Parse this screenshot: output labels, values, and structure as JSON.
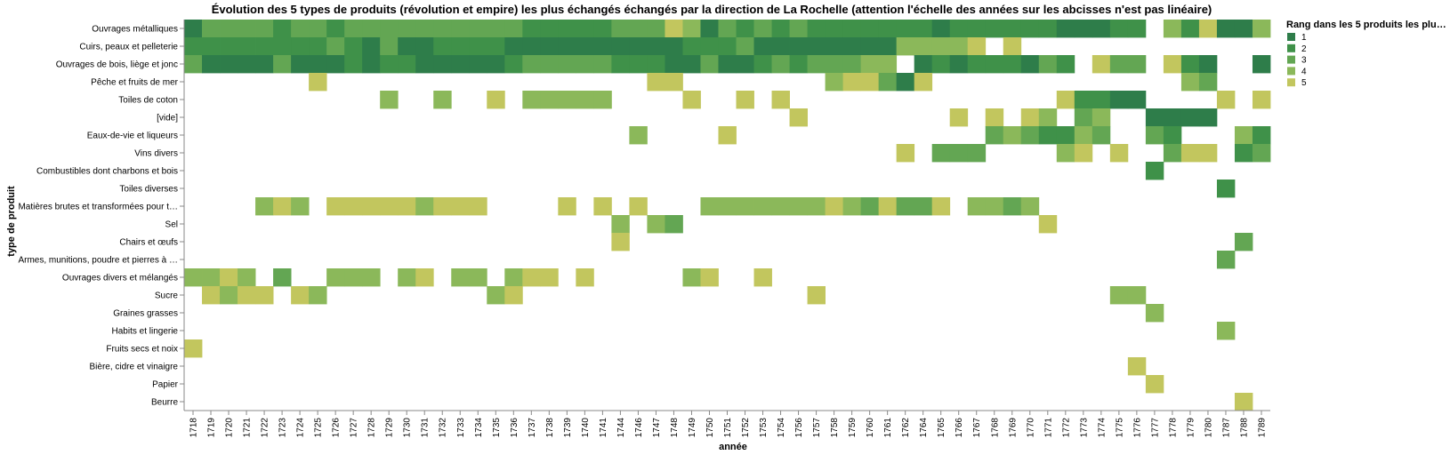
{
  "chart_data": {
    "type": "heatmap",
    "title": "Évolution des 5 types de produits (révolution et empire) les plus échangés échangés par la direction de La Rochelle (attention l'échelle des années sur les abcisses n'est pas linéaire)",
    "xlabel": "année",
    "ylabel": "type de produit",
    "x_categories": [
      "1718",
      "1719",
      "1720",
      "1721",
      "1722",
      "1723",
      "1724",
      "1725",
      "1726",
      "1727",
      "1728",
      "1729",
      "1730",
      "1731",
      "1732",
      "1733",
      "1734",
      "1735",
      "1736",
      "1737",
      "1738",
      "1739",
      "1740",
      "1741",
      "1744",
      "1746",
      "1747",
      "1748",
      "1749",
      "1750",
      "1751",
      "1752",
      "1753",
      "1754",
      "1756",
      "1757",
      "1758",
      "1759",
      "1760",
      "1761",
      "1762",
      "1764",
      "1765",
      "1766",
      "1767",
      "1768",
      "1769",
      "1770",
      "1771",
      "1772",
      "1773",
      "1774",
      "1775",
      "1776",
      "1777",
      "1778",
      "1779",
      "1780",
      "1787",
      "1788",
      "1789"
    ],
    "y_categories": [
      "Ouvrages métalliques",
      "Cuirs, peaux et pelleterie",
      "Ouvrages de bois, liège et jonc",
      "Pêche et fruits de mer",
      "Toiles de coton",
      "[vide]",
      "Eaux-de-vie et liqueurs",
      "Vins divers",
      "Combustibles dont charbons et bois",
      "Toiles diverses",
      "Matières brutes et transformées pour t…",
      "Sel",
      "Chairs et œufs",
      "Armes, munitions, poudre et pierres à …",
      "Ouvrages divers et mélangés",
      "Sucre",
      "Graines grasses",
      "Habits et lingerie",
      "Fruits secs et noix",
      "Bière, cidre et vinaigre",
      "Papier",
      "Beurre"
    ],
    "legend": {
      "title": "Rang dans les 5 produits les plu…",
      "placement": "top-right",
      "entries": [
        {
          "label": "1",
          "color": "#2e7d4a"
        },
        {
          "label": "2",
          "color": "#3f9149"
        },
        {
          "label": "3",
          "color": "#63a653"
        },
        {
          "label": "4",
          "color": "#8bb85a"
        },
        {
          "label": "5",
          "color": "#c2c65e"
        }
      ]
    },
    "grid": false,
    "cells": {
      "Ouvrages métalliques": [
        1,
        3,
        3,
        3,
        3,
        2,
        3,
        3,
        2,
        3,
        3,
        3,
        3,
        3,
        3,
        3,
        3,
        3,
        3,
        2,
        2,
        2,
        2,
        2,
        3,
        3,
        3,
        5,
        4,
        1,
        3,
        2,
        3,
        2,
        3,
        2,
        2,
        2,
        2,
        2,
        2,
        2,
        1,
        2,
        2,
        2,
        2,
        2,
        2,
        1,
        1,
        1,
        2,
        2,
        0,
        4,
        2,
        5,
        1,
        1,
        4
      ],
      "Cuirs, peaux et pelleterie": [
        2,
        2,
        2,
        2,
        2,
        2,
        2,
        2,
        3,
        2,
        1,
        3,
        1,
        1,
        2,
        2,
        2,
        2,
        1,
        1,
        1,
        1,
        1,
        1,
        1,
        1,
        1,
        1,
        2,
        2,
        2,
        3,
        1,
        1,
        1,
        1,
        1,
        1,
        1,
        1,
        4,
        4,
        4,
        4,
        5,
        0,
        5,
        0,
        0,
        0,
        0,
        0,
        0,
        0,
        0,
        0,
        0,
        0,
        0,
        0,
        0
      ],
      "Ouvrages de bois, liège et jonc": [
        3,
        1,
        1,
        1,
        1,
        3,
        1,
        1,
        1,
        2,
        1,
        2,
        2,
        1,
        1,
        1,
        1,
        1,
        2,
        3,
        3,
        3,
        3,
        3,
        2,
        2,
        2,
        1,
        1,
        3,
        1,
        1,
        2,
        3,
        2,
        3,
        3,
        3,
        4,
        4,
        0,
        1,
        2,
        1,
        2,
        2,
        2,
        1,
        3,
        2,
        0,
        5,
        3,
        3,
        0,
        5,
        2,
        1,
        0,
        0,
        1
      ],
      "Pêche et fruits de mer": [
        0,
        0,
        0,
        0,
        0,
        0,
        0,
        5,
        0,
        0,
        0,
        0,
        0,
        0,
        0,
        0,
        0,
        0,
        0,
        0,
        0,
        0,
        0,
        0,
        0,
        0,
        5,
        5,
        0,
        0,
        0,
        0,
        0,
        0,
        0,
        0,
        4,
        5,
        5,
        3,
        1,
        5,
        0,
        0,
        0,
        0,
        0,
        0,
        0,
        0,
        0,
        0,
        0,
        0,
        0,
        0,
        4,
        3,
        0,
        0,
        0
      ],
      "Toiles de coton": [
        0,
        0,
        0,
        0,
        0,
        0,
        0,
        0,
        0,
        0,
        0,
        4,
        0,
        0,
        4,
        0,
        0,
        5,
        0,
        4,
        4,
        4,
        4,
        4,
        0,
        0,
        0,
        0,
        5,
        0,
        0,
        5,
        0,
        5,
        0,
        0,
        0,
        0,
        0,
        0,
        0,
        0,
        0,
        0,
        0,
        0,
        0,
        0,
        0,
        5,
        2,
        2,
        1,
        1,
        0,
        0,
        0,
        0,
        5,
        0,
        5
      ],
      "[vide]": [
        0,
        0,
        0,
        0,
        0,
        0,
        0,
        0,
        0,
        0,
        0,
        0,
        0,
        0,
        0,
        0,
        0,
        0,
        0,
        0,
        0,
        0,
        0,
        0,
        0,
        0,
        0,
        0,
        0,
        0,
        0,
        0,
        0,
        0,
        5,
        0,
        0,
        0,
        0,
        0,
        0,
        0,
        0,
        5,
        0,
        5,
        0,
        5,
        4,
        0,
        3,
        4,
        0,
        0,
        1,
        1,
        1,
        1,
        0,
        0,
        0
      ],
      "Eaux-de-vie et liqueurs": [
        0,
        0,
        0,
        0,
        0,
        0,
        0,
        0,
        0,
        0,
        0,
        0,
        0,
        0,
        0,
        0,
        0,
        0,
        0,
        0,
        0,
        0,
        0,
        0,
        0,
        4,
        0,
        0,
        0,
        0,
        5,
        0,
        0,
        0,
        0,
        0,
        0,
        0,
        0,
        0,
        0,
        0,
        0,
        0,
        0,
        3,
        4,
        3,
        2,
        2,
        4,
        3,
        0,
        0,
        3,
        2,
        0,
        0,
        0,
        4,
        2
      ],
      "Vins divers": [
        0,
        0,
        0,
        0,
        0,
        0,
        0,
        0,
        0,
        0,
        0,
        0,
        0,
        0,
        0,
        0,
        0,
        0,
        0,
        0,
        0,
        0,
        0,
        0,
        0,
        0,
        0,
        0,
        0,
        0,
        0,
        0,
        0,
        0,
        0,
        0,
        0,
        0,
        0,
        0,
        5,
        0,
        3,
        3,
        3,
        0,
        0,
        0,
        0,
        4,
        5,
        0,
        5,
        0,
        0,
        3,
        5,
        5,
        0,
        2,
        3
      ],
      "Combustibles dont charbons et bois": [
        0,
        0,
        0,
        0,
        0,
        0,
        0,
        0,
        0,
        0,
        0,
        0,
        0,
        0,
        0,
        0,
        0,
        0,
        0,
        0,
        0,
        0,
        0,
        0,
        0,
        0,
        0,
        0,
        0,
        0,
        0,
        0,
        0,
        0,
        0,
        0,
        0,
        0,
        0,
        0,
        0,
        0,
        0,
        0,
        0,
        0,
        0,
        0,
        0,
        0,
        0,
        0,
        0,
        0,
        2,
        0,
        0,
        0,
        0,
        0,
        0
      ],
      "Toiles diverses": [
        0,
        0,
        0,
        0,
        0,
        0,
        0,
        0,
        0,
        0,
        0,
        0,
        0,
        0,
        0,
        0,
        0,
        0,
        0,
        0,
        0,
        0,
        0,
        0,
        0,
        0,
        0,
        0,
        0,
        0,
        0,
        0,
        0,
        0,
        0,
        0,
        0,
        0,
        0,
        0,
        0,
        0,
        0,
        0,
        0,
        0,
        0,
        0,
        0,
        0,
        0,
        0,
        0,
        0,
        0,
        0,
        0,
        0,
        2,
        0,
        0
      ],
      "Matières brutes et transformées pour t…": [
        0,
        0,
        0,
        0,
        4,
        5,
        4,
        0,
        5,
        5,
        5,
        5,
        5,
        4,
        5,
        5,
        5,
        0,
        0,
        0,
        0,
        5,
        0,
        5,
        0,
        5,
        0,
        0,
        0,
        4,
        4,
        4,
        4,
        4,
        4,
        4,
        5,
        4,
        3,
        5,
        3,
        3,
        5,
        0,
        4,
        4,
        3,
        4,
        0,
        0,
        0,
        0,
        0,
        0,
        0,
        0,
        0,
        0,
        0,
        0,
        0
      ],
      "Sel": [
        0,
        0,
        0,
        0,
        0,
        0,
        0,
        0,
        0,
        0,
        0,
        0,
        0,
        0,
        0,
        0,
        0,
        0,
        0,
        0,
        0,
        0,
        0,
        0,
        4,
        0,
        4,
        3,
        0,
        0,
        0,
        0,
        0,
        0,
        0,
        0,
        0,
        0,
        0,
        0,
        0,
        0,
        0,
        0,
        0,
        0,
        0,
        0,
        5,
        0,
        0,
        0,
        0,
        0,
        0,
        0,
        0,
        0,
        0,
        0,
        0
      ],
      "Chairs et œufs": [
        0,
        0,
        0,
        0,
        0,
        0,
        0,
        0,
        0,
        0,
        0,
        0,
        0,
        0,
        0,
        0,
        0,
        0,
        0,
        0,
        0,
        0,
        0,
        0,
        5,
        0,
        0,
        0,
        0,
        0,
        0,
        0,
        0,
        0,
        0,
        0,
        0,
        0,
        0,
        0,
        0,
        0,
        0,
        0,
        0,
        0,
        0,
        0,
        0,
        0,
        0,
        0,
        0,
        0,
        0,
        0,
        0,
        0,
        0,
        3,
        0
      ],
      "Armes, munitions, poudre et pierres à …": [
        0,
        0,
        0,
        0,
        0,
        0,
        0,
        0,
        0,
        0,
        0,
        0,
        0,
        0,
        0,
        0,
        0,
        0,
        0,
        0,
        0,
        0,
        0,
        0,
        0,
        0,
        0,
        0,
        0,
        0,
        0,
        0,
        0,
        0,
        0,
        0,
        0,
        0,
        0,
        0,
        0,
        0,
        0,
        0,
        0,
        0,
        0,
        0,
        0,
        0,
        0,
        0,
        0,
        0,
        0,
        0,
        0,
        0,
        3,
        0,
        0
      ],
      "Ouvrages divers et mélangés": [
        4,
        4,
        5,
        4,
        0,
        3,
        0,
        0,
        4,
        4,
        4,
        0,
        4,
        5,
        0,
        4,
        4,
        0,
        4,
        5,
        5,
        0,
        5,
        0,
        0,
        0,
        0,
        0,
        4,
        5,
        0,
        0,
        5,
        0,
        0,
        0,
        0,
        0,
        0,
        0,
        0,
        0,
        0,
        0,
        0,
        0,
        0,
        0,
        0,
        0,
        0,
        0,
        0,
        0,
        0,
        0,
        0,
        0,
        0,
        0,
        0
      ],
      "Sucre": [
        0,
        5,
        4,
        5,
        5,
        0,
        5,
        4,
        0,
        0,
        0,
        0,
        0,
        0,
        0,
        0,
        0,
        4,
        5,
        0,
        0,
        0,
        0,
        0,
        0,
        0,
        0,
        0,
        0,
        0,
        0,
        0,
        0,
        0,
        0,
        5,
        0,
        0,
        0,
        0,
        0,
        0,
        0,
        0,
        0,
        0,
        0,
        0,
        0,
        0,
        0,
        0,
        4,
        4,
        0,
        0,
        0,
        0,
        0,
        0,
        0
      ],
      "Graines grasses": [
        0,
        0,
        0,
        0,
        0,
        0,
        0,
        0,
        0,
        0,
        0,
        0,
        0,
        0,
        0,
        0,
        0,
        0,
        0,
        0,
        0,
        0,
        0,
        0,
        0,
        0,
        0,
        0,
        0,
        0,
        0,
        0,
        0,
        0,
        0,
        0,
        0,
        0,
        0,
        0,
        0,
        0,
        0,
        0,
        0,
        0,
        0,
        0,
        0,
        0,
        0,
        0,
        0,
        0,
        4,
        0,
        0,
        0,
        0,
        0,
        0
      ],
      "Habits et lingerie": [
        0,
        0,
        0,
        0,
        0,
        0,
        0,
        0,
        0,
        0,
        0,
        0,
        0,
        0,
        0,
        0,
        0,
        0,
        0,
        0,
        0,
        0,
        0,
        0,
        0,
        0,
        0,
        0,
        0,
        0,
        0,
        0,
        0,
        0,
        0,
        0,
        0,
        0,
        0,
        0,
        0,
        0,
        0,
        0,
        0,
        0,
        0,
        0,
        0,
        0,
        0,
        0,
        0,
        0,
        0,
        0,
        0,
        0,
        4,
        0,
        0
      ],
      "Fruits secs et noix": [
        5,
        0,
        0,
        0,
        0,
        0,
        0,
        0,
        0,
        0,
        0,
        0,
        0,
        0,
        0,
        0,
        0,
        0,
        0,
        0,
        0,
        0,
        0,
        0,
        0,
        0,
        0,
        0,
        0,
        0,
        0,
        0,
        0,
        0,
        0,
        0,
        0,
        0,
        0,
        0,
        0,
        0,
        0,
        0,
        0,
        0,
        0,
        0,
        0,
        0,
        0,
        0,
        0,
        0,
        0,
        0,
        0,
        0,
        0,
        0,
        0
      ],
      "Bière, cidre et vinaigre": [
        0,
        0,
        0,
        0,
        0,
        0,
        0,
        0,
        0,
        0,
        0,
        0,
        0,
        0,
        0,
        0,
        0,
        0,
        0,
        0,
        0,
        0,
        0,
        0,
        0,
        0,
        0,
        0,
        0,
        0,
        0,
        0,
        0,
        0,
        0,
        0,
        0,
        0,
        0,
        0,
        0,
        0,
        0,
        0,
        0,
        0,
        0,
        0,
        0,
        0,
        0,
        0,
        0,
        5,
        0,
        0,
        0,
        0,
        0,
        0,
        0
      ],
      "Papier": [
        0,
        0,
        0,
        0,
        0,
        0,
        0,
        0,
        0,
        0,
        0,
        0,
        0,
        0,
        0,
        0,
        0,
        0,
        0,
        0,
        0,
        0,
        0,
        0,
        0,
        0,
        0,
        0,
        0,
        0,
        0,
        0,
        0,
        0,
        0,
        0,
        0,
        0,
        0,
        0,
        0,
        0,
        0,
        0,
        0,
        0,
        0,
        0,
        0,
        0,
        0,
        0,
        0,
        0,
        5,
        0,
        0,
        0,
        0,
        0,
        0
      ],
      "Beurre": [
        0,
        0,
        0,
        0,
        0,
        0,
        0,
        0,
        0,
        0,
        0,
        0,
        0,
        0,
        0,
        0,
        0,
        0,
        0,
        0,
        0,
        0,
        0,
        0,
        0,
        0,
        0,
        0,
        0,
        0,
        0,
        0,
        0,
        0,
        0,
        0,
        0,
        0,
        0,
        0,
        0,
        0,
        0,
        0,
        0,
        0,
        0,
        0,
        0,
        0,
        0,
        0,
        0,
        0,
        0,
        0,
        0,
        0,
        0,
        5,
        0
      ]
    }
  }
}
